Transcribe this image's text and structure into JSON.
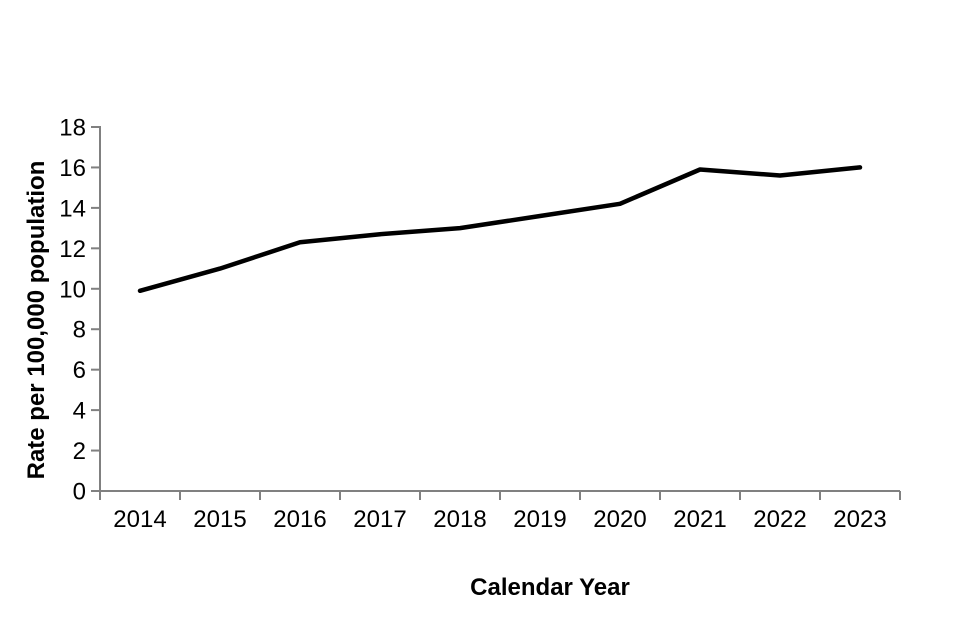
{
  "figure": {
    "background_color": "#ffffff",
    "axis_color": "#808080",
    "series_color": "#000000",
    "text_color": "#000000"
  },
  "chart_data": {
    "type": "line",
    "title": "",
    "xlabel": "Calendar Year",
    "ylabel": "Rate per 100,000 population",
    "categories": [
      "2014",
      "2015",
      "2016",
      "2017",
      "2018",
      "2019",
      "2020",
      "2021",
      "2022",
      "2023"
    ],
    "values": [
      9.9,
      11.0,
      12.3,
      12.7,
      13.0,
      13.6,
      14.2,
      15.9,
      15.6,
      16.0
    ],
    "ylim": [
      0,
      18
    ],
    "yticks": [
      0,
      2,
      4,
      6,
      8,
      10,
      12,
      14,
      16,
      18
    ],
    "grid": false,
    "legend_position": "none",
    "line_width": 4.5
  }
}
